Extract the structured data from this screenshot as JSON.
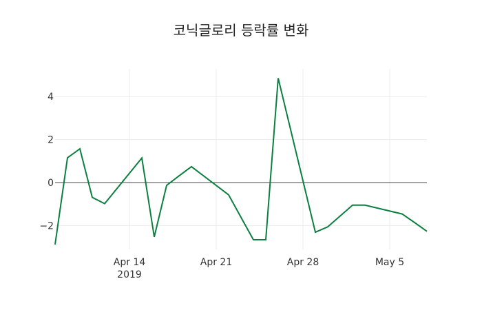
{
  "chart_data": {
    "type": "line",
    "title": "코닉글로리 등락률 변화",
    "xlabel": "",
    "ylabel": "",
    "x_tick_labels": [
      {
        "date": "2019-04-14",
        "label": "Apr 14",
        "sublabel": "2019"
      },
      {
        "date": "2019-04-21",
        "label": "Apr 21",
        "sublabel": ""
      },
      {
        "date": "2019-04-28",
        "label": "Apr 28",
        "sublabel": ""
      },
      {
        "date": "2019-05-05",
        "label": "May 5",
        "sublabel": ""
      }
    ],
    "y_ticks": [
      -2,
      0,
      2,
      4
    ],
    "y_tick_labels": [
      "−2",
      "0",
      "2",
      "4"
    ],
    "xlim": [
      "2019-04-08",
      "2019-05-08"
    ],
    "ylim": [
      -3.1,
      5.2
    ],
    "grid": true,
    "zero_line": true,
    "line_color": "#0a7f3f",
    "series": [
      {
        "name": "등락률",
        "x": [
          "2019-04-08",
          "2019-04-09",
          "2019-04-10",
          "2019-04-11",
          "2019-04-12",
          "2019-04-15",
          "2019-04-16",
          "2019-04-17",
          "2019-04-18",
          "2019-04-19",
          "2019-04-22",
          "2019-04-23",
          "2019-04-24",
          "2019-04-25",
          "2019-04-26",
          "2019-04-29",
          "2019-04-30",
          "2019-05-02",
          "2019-05-03",
          "2019-05-06",
          "2019-05-07",
          "2019-05-08"
        ],
        "values": [
          -2.88,
          1.15,
          1.57,
          -0.69,
          -0.98,
          1.14,
          -2.53,
          -0.13,
          0.31,
          0.74,
          -0.57,
          -1.62,
          -2.66,
          -2.66,
          4.86,
          -2.31,
          -2.06,
          -1.05,
          -1.05,
          -1.46,
          -1.86,
          -2.27
        ]
      }
    ]
  }
}
